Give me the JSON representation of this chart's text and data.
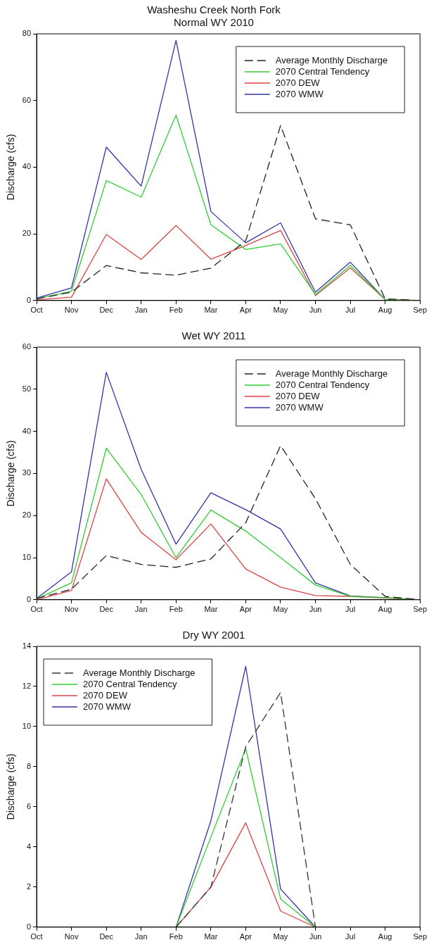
{
  "chart_data": [
    {
      "type": "line",
      "title": "Washeshu Creek North Fork",
      "subtitle": "Normal WY 2010",
      "ylabel": "Discharge (cfs)",
      "categories": [
        "Oct",
        "Nov",
        "Dec",
        "Jan",
        "Feb",
        "Mar",
        "Apr",
        "May",
        "Jun",
        "Jul",
        "Aug",
        "Sep"
      ],
      "ylim": [
        0,
        80
      ],
      "yticks": [
        0,
        20,
        40,
        60,
        80
      ],
      "grid": false,
      "legend": "top right",
      "marker": "none",
      "series": [
        {
          "name": "Average Monthly Discharge",
          "color": "#222222",
          "line_style": "dashed",
          "values": [
            0.5,
            2.5,
            10.5,
            8.3,
            7.6,
            9.7,
            17.9,
            52.5,
            24.5,
            22.7,
            0.5,
            0
          ]
        },
        {
          "name": "2070 Central Tendency",
          "color": "#33cc33",
          "values": [
            0.5,
            2.8,
            36,
            31,
            55.6,
            22.7,
            15.3,
            17,
            1.8,
            10.5,
            0.3,
            0
          ]
        },
        {
          "name": "2070 DEW",
          "color": "#dd4444",
          "values": [
            0.2,
            1,
            19.8,
            12.3,
            22.5,
            12.4,
            16.5,
            21,
            1.5,
            9.8,
            0.3,
            0
          ]
        },
        {
          "name": "2070 WMW",
          "color": "#3333aa",
          "values": [
            0.7,
            3.8,
            46,
            34.3,
            78,
            26.7,
            17.3,
            23.3,
            2.5,
            11.5,
            0.3,
            0
          ]
        }
      ]
    },
    {
      "type": "line",
      "title": "Wet WY 2011",
      "ylabel": "Discharge (cfs)",
      "categories": [
        "Oct",
        "Nov",
        "Dec",
        "Jan",
        "Feb",
        "Mar",
        "Apr",
        "May",
        "Jun",
        "Jul",
        "Aug",
        "Sep"
      ],
      "ylim": [
        0,
        60
      ],
      "yticks": [
        0,
        10,
        20,
        30,
        40,
        50,
        60
      ],
      "grid": false,
      "legend": "top right",
      "marker": "none",
      "series": [
        {
          "name": "Average Monthly Discharge",
          "color": "#222222",
          "line_style": "dashed",
          "values": [
            0.3,
            2.5,
            10.5,
            8.4,
            7.7,
            9.7,
            18.3,
            36.6,
            24,
            8.4,
            0.8,
            0
          ]
        },
        {
          "name": "2070 Central Tendency",
          "color": "#33cc33",
          "values": [
            0.2,
            4,
            36,
            25,
            10,
            21.3,
            16.3,
            10,
            3.5,
            0.8,
            0.5,
            0
          ]
        },
        {
          "name": "2070 DEW",
          "color": "#dd4444",
          "values": [
            0,
            2.2,
            28.7,
            16,
            9.5,
            18,
            7.3,
            3,
            1,
            0.8,
            0.4,
            0
          ]
        },
        {
          "name": "2070 WMW",
          "color": "#3333aa",
          "values": [
            0.3,
            6.6,
            54,
            31,
            13.2,
            25.4,
            21.4,
            16.8,
            4,
            0.9,
            0.5,
            0
          ]
        }
      ]
    },
    {
      "type": "line",
      "title": "Dry WY 2001",
      "ylabel": "Discharge (cfs)",
      "categories": [
        "Oct",
        "Nov",
        "Dec",
        "Jan",
        "Feb",
        "Mar",
        "Apr",
        "May",
        "Jun",
        "Jul",
        "Aug",
        "Sep"
      ],
      "ylim": [
        0,
        14
      ],
      "yticks": [
        0,
        2,
        4,
        6,
        8,
        10,
        12,
        14
      ],
      "grid": false,
      "legend": "top left",
      "marker": "none",
      "series": [
        {
          "name": "Average Monthly Discharge",
          "color": "#333333",
          "line_style": "dashed",
          "values": [
            null,
            null,
            null,
            null,
            0,
            2,
            9,
            11.7,
            0,
            null,
            null,
            null
          ]
        },
        {
          "name": "2070 Central Tendency",
          "color": "#33cc33",
          "values": [
            null,
            null,
            null,
            null,
            0,
            4.5,
            8.9,
            1.4,
            0,
            null,
            null,
            null
          ]
        },
        {
          "name": "2070 DEW",
          "color": "#dd4444",
          "values": [
            null,
            null,
            null,
            null,
            0,
            2,
            5.2,
            0.8,
            0,
            null,
            null,
            null
          ]
        },
        {
          "name": "2070 WMW",
          "color": "#3333aa",
          "values": [
            null,
            null,
            null,
            null,
            0,
            5.3,
            13,
            1.9,
            0,
            null,
            null,
            null
          ]
        }
      ]
    }
  ]
}
